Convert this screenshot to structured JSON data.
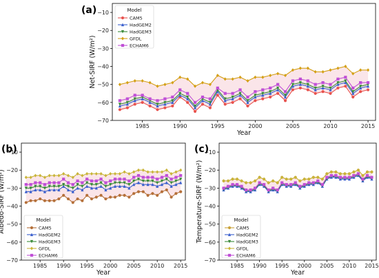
{
  "chart_data": [
    {
      "type": "line",
      "panel_label": "(a)",
      "ylabel": "Net-SIRF (W/m²)",
      "xlabel": "Year",
      "ylim": [
        -70,
        -5
      ],
      "yticks": [
        -70,
        -60,
        -50,
        -40,
        -30,
        -20,
        -10
      ],
      "xlim": [
        1981,
        2016
      ],
      "xticks": [
        1985,
        1990,
        1995,
        2000,
        2005,
        2010,
        2015
      ],
      "legend": {
        "title": "Model",
        "placement": "top-left"
      },
      "shaded_band": true,
      "x": [
        1982,
        1983,
        1984,
        1985,
        1986,
        1987,
        1988,
        1989,
        1990,
        1991,
        1992,
        1993,
        1994,
        1995,
        1996,
        1997,
        1998,
        1999,
        2000,
        2001,
        2002,
        2003,
        2004,
        2005,
        2006,
        2007,
        2008,
        2009,
        2010,
        2011,
        2012,
        2013,
        2014,
        2015
      ],
      "series": [
        {
          "name": "CAM5",
          "color": "#e8534f",
          "marker": "circle",
          "values": [
            -64,
            -63,
            -61,
            -60,
            -62,
            -64,
            -63,
            -62,
            -57,
            -60,
            -65,
            -61,
            -63,
            -56,
            -61,
            -60,
            -58,
            -62,
            -59,
            -58,
            -57,
            -55,
            -59,
            -53,
            -52,
            -53,
            -55,
            -54,
            -55,
            -52,
            -51,
            -57,
            -54,
            -53
          ]
        },
        {
          "name": "HadGEM2",
          "color": "#3a5fcd",
          "marker": "triangle",
          "values": [
            -62,
            -61,
            -59,
            -58,
            -60,
            -62,
            -61,
            -60,
            -56,
            -58,
            -63,
            -59,
            -61,
            -54,
            -59,
            -58,
            -56,
            -60,
            -57,
            -56,
            -55,
            -53,
            -57,
            -51,
            -50,
            -51,
            -53,
            -52,
            -53,
            -50,
            -49,
            -55,
            -52,
            -51
          ]
        },
        {
          "name": "HadGEM3",
          "color": "#3a8a3a",
          "marker": "triangle-down",
          "values": [
            -61,
            -60,
            -58,
            -57,
            -59,
            -61,
            -60,
            -59,
            -55,
            -57,
            -62,
            -58,
            -60,
            -53,
            -58,
            -57,
            -55,
            -59,
            -56,
            -55,
            -54,
            -52,
            -56,
            -50,
            -49,
            -50,
            -52,
            -51,
            -52,
            -49,
            -48,
            -54,
            -51,
            -50
          ]
        },
        {
          "name": "GFDL",
          "color": "#d4a017",
          "marker": "diamond",
          "values": [
            -50,
            -49,
            -48,
            -48,
            -49,
            -51,
            -50,
            -49,
            -46,
            -47,
            -51,
            -49,
            -50,
            -45,
            -47,
            -47,
            -46,
            -48,
            -46,
            -46,
            -45,
            -44,
            -45,
            -42,
            -41,
            -41,
            -43,
            -43,
            -42,
            -41,
            -40,
            -44,
            -42,
            -42
          ]
        },
        {
          "name": "ECHAM6",
          "color": "#c04fd6",
          "marker": "square",
          "values": [
            -59,
            -58,
            -56,
            -56,
            -58,
            -59,
            -58,
            -57,
            -53,
            -55,
            -60,
            -57,
            -58,
            -52,
            -55,
            -55,
            -53,
            -57,
            -54,
            -53,
            -52,
            -50,
            -54,
            -48,
            -47,
            -48,
            -50,
            -49,
            -50,
            -47,
            -46,
            -52,
            -49,
            -49
          ]
        }
      ]
    },
    {
      "type": "line",
      "panel_label": "(b)",
      "ylabel": "Albedo-SIRF (W/m²)",
      "xlabel": "Year",
      "ylim": [
        -70,
        -5
      ],
      "yticks": [
        -70,
        -60,
        -50,
        -40,
        -30,
        -20,
        -10
      ],
      "xlim": [
        1981,
        2016
      ],
      "xticks": [
        1985,
        1990,
        1995,
        2000,
        2005,
        2010,
        2015
      ],
      "legend": {
        "title": "Model",
        "placement": "bottom-left"
      },
      "shaded_band": true,
      "x": [
        1982,
        1983,
        1984,
        1985,
        1986,
        1987,
        1988,
        1989,
        1990,
        1991,
        1992,
        1993,
        1994,
        1995,
        1996,
        1997,
        1998,
        1999,
        2000,
        2001,
        2002,
        2003,
        2004,
        2005,
        2006,
        2007,
        2008,
        2009,
        2010,
        2011,
        2012,
        2013,
        2014,
        2015
      ],
      "series": [
        {
          "name": "CAM5",
          "color": "#b5703a",
          "marker": "circle",
          "values": [
            -38,
            -37,
            -37,
            -36,
            -37,
            -37,
            -37,
            -36,
            -34,
            -36,
            -38,
            -36,
            -37,
            -34,
            -36,
            -35,
            -34,
            -36,
            -35,
            -35,
            -34,
            -34,
            -35,
            -33,
            -32,
            -32,
            -34,
            -33,
            -34,
            -32,
            -31,
            -35,
            -33,
            -32
          ]
        },
        {
          "name": "HadGEM2",
          "color": "#3a5fcd",
          "marker": "triangle",
          "values": [
            -32,
            -32,
            -31,
            -31,
            -32,
            -31,
            -31,
            -31,
            -29,
            -31,
            -32,
            -30,
            -31,
            -29,
            -30,
            -30,
            -29,
            -31,
            -30,
            -29,
            -29,
            -29,
            -30,
            -28,
            -27,
            -28,
            -28,
            -28,
            -29,
            -28,
            -27,
            -29,
            -28,
            -27
          ]
        },
        {
          "name": "HadGEM3",
          "color": "#3a8a3a",
          "marker": "triangle-down",
          "values": [
            -30,
            -30,
            -29,
            -29,
            -30,
            -29,
            -29,
            -29,
            -28,
            -29,
            -30,
            -28,
            -29,
            -27,
            -28,
            -28,
            -27,
            -29,
            -28,
            -27,
            -27,
            -27,
            -28,
            -26,
            -25,
            -26,
            -26,
            -26,
            -27,
            -26,
            -25,
            -27,
            -26,
            -25
          ]
        },
        {
          "name": "GFDL",
          "color": "#c9b53a",
          "marker": "diamond",
          "values": [
            -24,
            -24,
            -23,
            -23,
            -24,
            -23,
            -23,
            -23,
            -22,
            -23,
            -24,
            -22,
            -23,
            -22,
            -22,
            -22,
            -22,
            -23,
            -22,
            -22,
            -22,
            -21,
            -22,
            -21,
            -20,
            -20,
            -21,
            -21,
            -21,
            -21,
            -20,
            -22,
            -21,
            -20
          ]
        },
        {
          "name": "ECHAM6",
          "color": "#c04fd6",
          "marker": "square",
          "values": [
            -28,
            -28,
            -27,
            -27,
            -28,
            -27,
            -27,
            -27,
            -25,
            -27,
            -28,
            -26,
            -27,
            -25,
            -26,
            -26,
            -25,
            -27,
            -26,
            -25,
            -25,
            -25,
            -26,
            -24,
            -23,
            -24,
            -24,
            -24,
            -25,
            -24,
            -23,
            -25,
            -24,
            -23
          ]
        }
      ]
    },
    {
      "type": "line",
      "panel_label": "(c)",
      "ylabel": "Temperature-SIRF (W/m²)",
      "xlabel": "Year",
      "ylim": [
        -70,
        -5
      ],
      "yticks": [
        -70,
        -60,
        -50,
        -40,
        -30,
        -20,
        -10
      ],
      "xlim": [
        1981,
        2016
      ],
      "xticks": [
        1985,
        1990,
        1995,
        2000,
        2005,
        2010,
        2015
      ],
      "legend": {
        "title": "Model",
        "placement": "bottom-left"
      },
      "shaded_band": true,
      "x": [
        1982,
        1983,
        1984,
        1985,
        1986,
        1987,
        1988,
        1989,
        1990,
        1991,
        1992,
        1993,
        1994,
        1995,
        1996,
        1997,
        1998,
        1999,
        2000,
        2001,
        2002,
        2003,
        2004,
        2005,
        2006,
        2007,
        2008,
        2009,
        2010,
        2011,
        2012,
        2013,
        2014,
        2015
      ],
      "series": [
        {
          "name": "CAM5",
          "color": "#c9a23a",
          "marker": "circle",
          "values": [
            -26,
            -26,
            -25,
            -25,
            -26,
            -27,
            -27,
            -26,
            -24,
            -25,
            -27,
            -26,
            -27,
            -24,
            -25,
            -25,
            -24,
            -26,
            -25,
            -25,
            -24,
            -24,
            -25,
            -22,
            -21,
            -21,
            -22,
            -22,
            -22,
            -21,
            -20,
            -23,
            -21,
            -21
          ]
        },
        {
          "name": "HadGEM2",
          "color": "#3a5fcd",
          "marker": "triangle",
          "values": [
            -31,
            -30,
            -29,
            -29,
            -30,
            -32,
            -32,
            -31,
            -28,
            -29,
            -32,
            -31,
            -32,
            -28,
            -29,
            -29,
            -28,
            -30,
            -29,
            -28,
            -28,
            -27,
            -29,
            -25,
            -24,
            -24,
            -25,
            -25,
            -25,
            -24,
            -23,
            -26,
            -24,
            -25
          ]
        },
        {
          "name": "HadGEM3",
          "color": "#3a8a3a",
          "marker": "triangle-down",
          "values": [
            -30.5,
            -29.5,
            -28.5,
            -28.5,
            -29.5,
            -31.5,
            -31.5,
            -30.5,
            -27.5,
            -28.5,
            -31.5,
            -30.5,
            -31.5,
            -27.5,
            -28.5,
            -28.5,
            -27.5,
            -29.5,
            -28.5,
            -27.5,
            -27.5,
            -26.5,
            -28.5,
            -24.5,
            -23.5,
            -23.5,
            -24.5,
            -24.5,
            -24.5,
            -23.5,
            -22.5,
            -25.5,
            -23.5,
            -24.5
          ]
        },
        {
          "name": "GFDL",
          "color": "#c9b53a",
          "marker": "diamond",
          "values": [
            -26,
            -26,
            -25,
            -25,
            -26,
            -27,
            -27,
            -26,
            -24,
            -25,
            -27,
            -26,
            -27,
            -24,
            -25,
            -25,
            -24,
            -26,
            -25,
            -25,
            -24,
            -24,
            -25,
            -22,
            -21,
            -21,
            -22,
            -22,
            -22,
            -21,
            -20,
            -23,
            -21,
            -21
          ]
        },
        {
          "name": "ECHAM6",
          "color": "#c04fd6",
          "marker": "square",
          "values": [
            -30,
            -29,
            -28,
            -28,
            -29,
            -31,
            -31,
            -30,
            -27,
            -28,
            -31,
            -30,
            -31,
            -27,
            -28,
            -28,
            -27,
            -29,
            -28,
            -27,
            -27,
            -26,
            -28,
            -24,
            -23,
            -23,
            -24,
            -24,
            -24,
            -23,
            -22,
            -25,
            -23,
            -24
          ]
        }
      ]
    }
  ]
}
